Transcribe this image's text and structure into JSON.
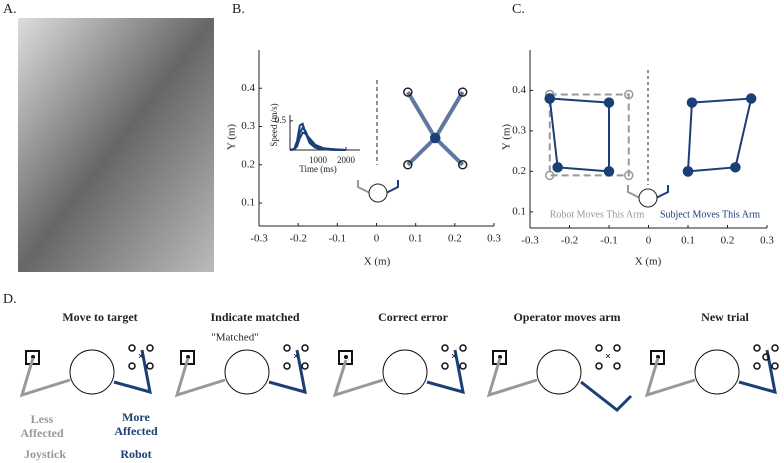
{
  "panel_labels": [
    "A.",
    "B.",
    "C.",
    "D."
  ],
  "chart_data": [
    {
      "type": "line",
      "xlabel": "X (m)",
      "ylabel": "Y (m)",
      "xlim": [
        -0.3,
        0.3
      ],
      "ylim": [
        0.04,
        0.5
      ],
      "xticks": [
        -0.3,
        -0.2,
        -0.1,
        0,
        0.1,
        0.2,
        0.3
      ],
      "yticks": [
        0.1,
        0.2,
        0.3,
        0.4
      ],
      "series": [
        {
          "color": "#1b3f77",
          "x": [
            0.15,
            0.08
          ],
          "values": [
            0.27,
            0.39
          ]
        },
        {
          "color": "#1b3f77",
          "x": [
            0.15,
            0.22
          ],
          "values": [
            0.27,
            0.39
          ]
        },
        {
          "color": "#1b3f77",
          "x": [
            0.15,
            0.08
          ],
          "values": [
            0.27,
            0.2
          ]
        },
        {
          "color": "#1b3f77",
          "x": [
            0.15,
            0.22
          ],
          "values": [
            0.27,
            0.2
          ]
        },
        {
          "color": "#1b3f77",
          "marker": "open",
          "nolines": true,
          "x": [
            0.08,
            0.22,
            0.08,
            0.22
          ],
          "values": [
            0.39,
            0.39,
            0.2,
            0.2
          ]
        },
        {
          "color": "#1b3f77",
          "marker": "filled",
          "nolines": true,
          "x": [
            0.15
          ],
          "values": [
            0.27
          ]
        }
      ]
    },
    {
      "type": "line",
      "xlabel": "Time (ms)",
      "ylabel": "Speed (m/s)",
      "xlim": [
        0,
        2500
      ],
      "ylim": [
        0,
        0.6
      ],
      "xticks": [
        1000,
        2000
      ],
      "yticks": [
        0.5
      ],
      "x": [
        0,
        150,
        250,
        350,
        450,
        550,
        700,
        900,
        1200,
        1600,
        2000
      ],
      "series": [
        {
          "color": "#1b3f77",
          "values": [
            0,
            0.02,
            0.15,
            0.42,
            0.45,
            0.3,
            0.12,
            0.04,
            0.01,
            0,
            0
          ]
        },
        {
          "color": "#1b3f77",
          "values": [
            0,
            0.01,
            0.1,
            0.3,
            0.38,
            0.33,
            0.16,
            0.06,
            0.02,
            0.01,
            0
          ]
        },
        {
          "color": "#1b3f77",
          "values": [
            0,
            0.01,
            0.06,
            0.2,
            0.3,
            0.28,
            0.2,
            0.09,
            0.03,
            0.01,
            0
          ]
        }
      ]
    },
    {
      "type": "line",
      "xlabel": "X (m)",
      "ylabel": "Y (m)",
      "xlim": [
        -0.3,
        0.3
      ],
      "ylim": [
        0.06,
        0.5
      ],
      "xticks": [
        -0.3,
        -0.2,
        -0.1,
        0,
        0.1,
        0.2,
        0.3
      ],
      "yticks": [
        0.1,
        0.2,
        0.3,
        0.4
      ],
      "annotations": [
        "Robot Moves This Arm",
        "Subject Moves This Arm"
      ],
      "series": [
        {
          "color": "#999999",
          "dash": true,
          "marker": "open",
          "x": [
            -0.25,
            -0.05,
            -0.05,
            -0.25,
            -0.25
          ],
          "values": [
            0.39,
            0.39,
            0.19,
            0.19,
            0.39
          ]
        },
        {
          "color": "#1b3f77",
          "marker": "filled",
          "x": [
            -0.25,
            -0.1,
            -0.1,
            -0.23,
            -0.25
          ],
          "values": [
            0.38,
            0.37,
            0.2,
            0.21,
            0.38
          ]
        },
        {
          "color": "#1b3f77",
          "marker": "filled",
          "x": [
            0.1,
            0.11,
            0.26,
            0.22,
            0.1
          ],
          "values": [
            0.2,
            0.37,
            0.38,
            0.21,
            0.2
          ]
        }
      ]
    }
  ],
  "panel_d": {
    "steps": [
      "Move to target",
      "Indicate matched",
      "Correct error",
      "Operator moves arm",
      "New trial"
    ],
    "note": "\"Matched\"",
    "less": [
      "Less",
      "Affected"
    ],
    "more": [
      "More",
      "Affected"
    ],
    "joystick": "Joystick",
    "robot": "Robot"
  }
}
